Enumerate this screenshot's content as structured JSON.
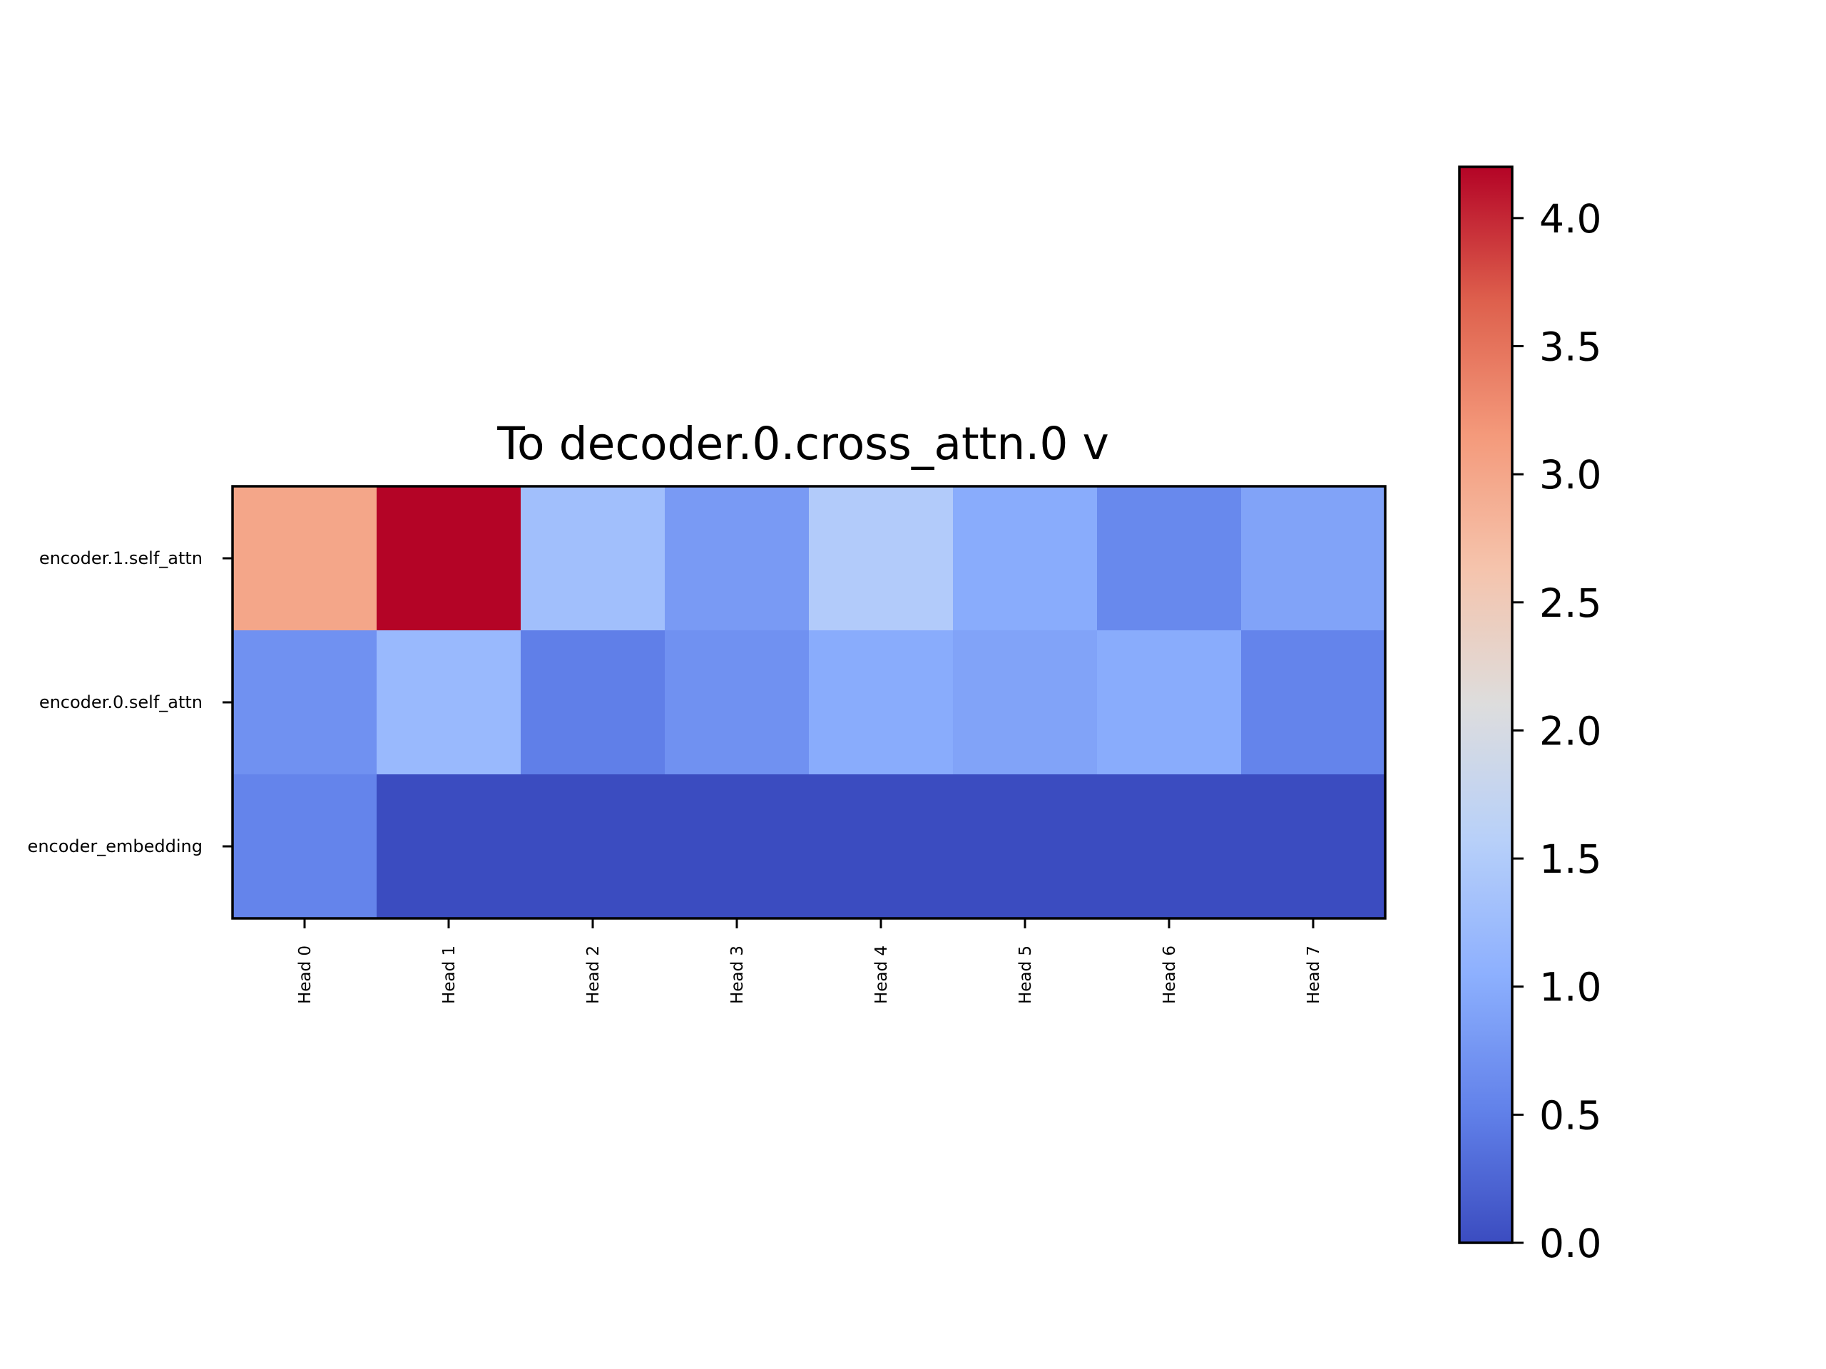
{
  "chart_data": {
    "type": "heatmap",
    "title": "To decoder.0.cross_attn.0 v",
    "xlabel": "",
    "ylabel": "",
    "x_categories": [
      "Head 0",
      "Head 1",
      "Head 2",
      "Head 3",
      "Head 4",
      "Head 5",
      "Head 6",
      "Head 7"
    ],
    "y_categories": [
      "encoder.1.self_attn",
      "encoder.0.self_attn",
      "encoder_embedding"
    ],
    "values": [
      [
        3.0,
        4.2,
        1.3,
        0.8,
        1.5,
        1.0,
        0.6,
        0.9
      ],
      [
        0.7,
        1.2,
        0.5,
        0.7,
        1.0,
        0.9,
        1.0,
        0.55
      ],
      [
        0.55,
        0.0,
        0.0,
        0.0,
        0.0,
        0.0,
        0.0,
        0.0
      ]
    ],
    "colormap": "coolwarm",
    "colorbar": {
      "vmin": 0.0,
      "vmax": 4.2,
      "ticks": [
        0.0,
        0.5,
        1.0,
        1.5,
        2.0,
        2.5,
        3.0,
        3.5,
        4.0
      ],
      "tick_labels": [
        "0.0",
        "0.5",
        "1.0",
        "1.5",
        "2.0",
        "2.5",
        "3.0",
        "3.5",
        "4.0"
      ],
      "position": "right"
    },
    "grid": false
  }
}
